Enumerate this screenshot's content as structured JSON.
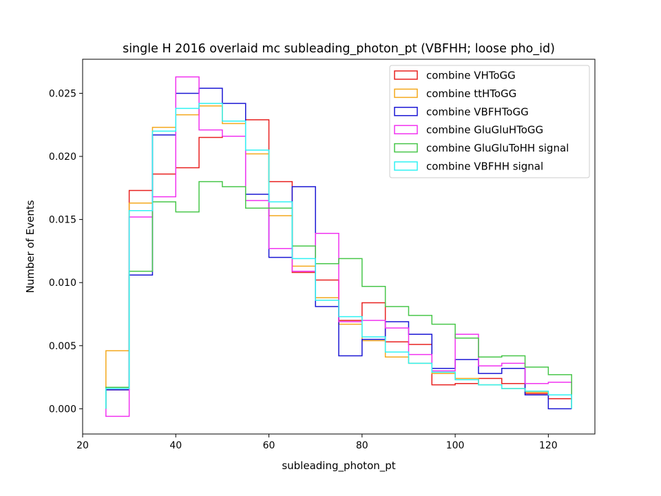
{
  "chart_data": {
    "type": "step-histogram",
    "title": "single H 2016 overlaid mc subleading_photon_pt (VBFHH; loose pho_id)",
    "xlabel": "subleading_photon_pt",
    "ylabel": "Number of Events",
    "xlim": [
      20,
      130
    ],
    "ylim": [
      -0.002,
      0.0277
    ],
    "xticks": [
      20,
      40,
      60,
      80,
      100,
      120
    ],
    "yticks": [
      0.0,
      0.005,
      0.01,
      0.015,
      0.02,
      0.025
    ],
    "ytick_labels": [
      "0.000",
      "0.005",
      "0.010",
      "0.015",
      "0.020",
      "0.025"
    ],
    "legend_position": "upper-right",
    "grid": false,
    "bin_edges": [
      25,
      30,
      35,
      40,
      45,
      50,
      55,
      60,
      65,
      70,
      75,
      80,
      85,
      90,
      95,
      100,
      105,
      110,
      115,
      120,
      125
    ],
    "series": [
      {
        "name": "combine VHToGG",
        "color": "#e8201f",
        "values": [
          0.0015,
          0.0173,
          0.0186,
          0.0191,
          0.0215,
          0.0216,
          0.0229,
          0.018,
          0.0108,
          0.0102,
          0.007,
          0.0084,
          0.0053,
          0.0051,
          0.0019,
          0.002,
          0.0024,
          0.002,
          0.0012,
          0.0008
        ]
      },
      {
        "name": "combine ttHToGG",
        "color": "#f4a81c",
        "values": [
          0.0046,
          0.0163,
          0.0223,
          0.0233,
          0.024,
          0.0226,
          0.0202,
          0.0153,
          0.0113,
          0.0088,
          0.0067,
          0.0054,
          0.0041,
          0.0036,
          0.0028,
          0.0024,
          0.0019,
          0.0016,
          0.0013,
          0.0011
        ]
      },
      {
        "name": "combine VBFHToGG",
        "color": "#1a16d4",
        "values": [
          0.0015,
          0.0106,
          0.0217,
          0.025,
          0.0254,
          0.0242,
          0.017,
          0.012,
          0.0176,
          0.0081,
          0.0042,
          0.0055,
          0.0069,
          0.0059,
          0.0032,
          0.0039,
          0.0028,
          0.0032,
          0.0011,
          0.0
        ]
      },
      {
        "name": "combine GluGluHToGG",
        "color": "#f132f0",
        "values": [
          -0.0006,
          0.0152,
          0.0168,
          0.0263,
          0.0221,
          0.0216,
          0.0165,
          0.0127,
          0.0109,
          0.0139,
          0.0069,
          0.007,
          0.0064,
          0.0043,
          0.003,
          0.0059,
          0.0034,
          0.0036,
          0.002,
          0.0021
        ]
      },
      {
        "name": "combine GluGluToHH signal",
        "color": "#47c649",
        "values": [
          0.0017,
          0.0109,
          0.0164,
          0.0156,
          0.018,
          0.0176,
          0.0159,
          0.0159,
          0.0129,
          0.0115,
          0.0119,
          0.0097,
          0.0081,
          0.0074,
          0.0067,
          0.0056,
          0.0041,
          0.0042,
          0.0033,
          0.0027
        ]
      },
      {
        "name": "combine VBFHH signal",
        "color": "#2ff2f3",
        "values": [
          0.0016,
          0.0157,
          0.022,
          0.0238,
          0.0242,
          0.0228,
          0.0205,
          0.0164,
          0.0119,
          0.0086,
          0.0073,
          0.0057,
          0.0045,
          0.0036,
          0.0029,
          0.0023,
          0.0019,
          0.0016,
          0.0014,
          0.0011
        ]
      }
    ]
  }
}
